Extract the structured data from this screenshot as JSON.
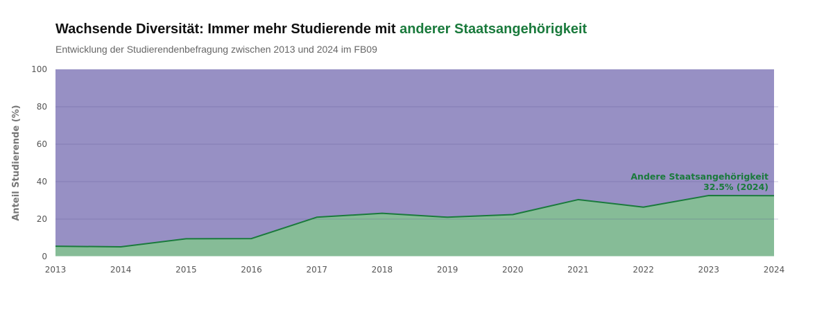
{
  "title": {
    "prefix": "Wachsende Diversität: Immer mehr Studierende mit ",
    "highlight": "anderer Staatsangehörigkeit"
  },
  "subtitle": "Entwicklung der Studierendenbefragung zwischen 2013 und 2024 im FB09",
  "colors": {
    "highlight": "#1a7a3c",
    "area_top": "#9790c4",
    "area_bottom": "#86bc97",
    "line": "#1a7a3c"
  },
  "chart_data": {
    "type": "area",
    "ylabel": "Anteil Studierende (%)",
    "ylim": [
      0,
      100
    ],
    "yticks": [
      0,
      20,
      40,
      60,
      80,
      100
    ],
    "grid": true,
    "stacked": true,
    "x": [
      "2013",
      "2014",
      "2015",
      "2016",
      "2017",
      "2018",
      "2019",
      "2020",
      "2021",
      "2022",
      "2023",
      "2024"
    ],
    "series": [
      {
        "values": [
          5.5,
          5.2,
          9.5,
          9.6,
          21.0,
          23.1,
          21.0,
          22.4,
          30.4,
          26.4,
          32.6,
          32.5
        ]
      },
      {
        "values": [
          94.5,
          94.8,
          90.5,
          90.4,
          79.0,
          76.9,
          79.0,
          77.6,
          69.6,
          73.6,
          67.4,
          67.5
        ]
      }
    ],
    "annotation": {
      "line1": "Andere Staatsangehörigkeit",
      "line2": "32.5% (2024)"
    }
  }
}
